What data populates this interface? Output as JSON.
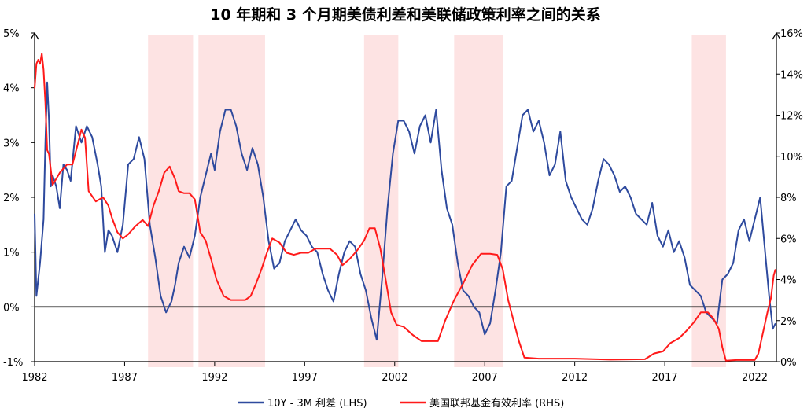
{
  "chart_data": {
    "type": "line",
    "title": "10 年期和 3 个月期美债利差和美联储政策利率之间的关系",
    "x_ticks": [
      "1982",
      "1987",
      "1992",
      "1997",
      "2002",
      "2007",
      "2012",
      "2017",
      "2022"
    ],
    "x_range": [
      1982,
      2023.2
    ],
    "y_left": {
      "ticks": [
        "-1%",
        "0%",
        "1%",
        "2%",
        "3%",
        "4%",
        "5%"
      ],
      "range": [
        -1,
        5
      ]
    },
    "y_right": {
      "ticks": [
        "0%",
        "2%",
        "4%",
        "6%",
        "8%",
        "10%",
        "12%",
        "14%",
        "16%"
      ],
      "range": [
        0,
        16
      ]
    },
    "recessions": [
      [
        1988.3,
        1990.8
      ],
      [
        1991.1,
        1994.8
      ],
      [
        2000.3,
        2002.2
      ],
      [
        2005.3,
        2008.0
      ],
      [
        2018.5,
        2020.4
      ]
    ],
    "series": [
      {
        "name": "10Y - 3M 利差 (LHS)",
        "axis": "left",
        "color": "#2e4a9e",
        "x": [
          1982.0,
          1982.1,
          1982.2,
          1982.3,
          1982.5,
          1982.6,
          1982.7,
          1982.8,
          1982.9,
          1983.0,
          1983.2,
          1983.4,
          1983.6,
          1983.8,
          1984.0,
          1984.3,
          1984.6,
          1984.9,
          1985.2,
          1985.5,
          1985.7,
          1985.9,
          1986.1,
          1986.3,
          1986.6,
          1986.9,
          1987.2,
          1987.5,
          1987.8,
          1988.1,
          1988.4,
          1988.7,
          1989.0,
          1989.3,
          1989.6,
          1989.8,
          1990.0,
          1990.3,
          1990.6,
          1990.9,
          1991.2,
          1991.5,
          1991.8,
          1992.0,
          1992.3,
          1992.6,
          1992.9,
          1993.2,
          1993.5,
          1993.8,
          1994.1,
          1994.4,
          1994.7,
          1995.0,
          1995.3,
          1995.6,
          1995.9,
          1996.2,
          1996.5,
          1996.8,
          1997.1,
          1997.4,
          1997.7,
          1998.0,
          1998.3,
          1998.6,
          1998.9,
          1999.2,
          1999.5,
          1999.8,
          2000.1,
          2000.4,
          2000.7,
          2001.0,
          2001.3,
          2001.6,
          2001.9,
          2002.2,
          2002.5,
          2002.8,
          2003.1,
          2003.4,
          2003.7,
          2004.0,
          2004.3,
          2004.6,
          2004.9,
          2005.2,
          2005.5,
          2005.8,
          2006.1,
          2006.4,
          2006.7,
          2007.0,
          2007.3,
          2007.6,
          2007.9,
          2008.2,
          2008.5,
          2008.8,
          2009.1,
          2009.4,
          2009.7,
          2010.0,
          2010.3,
          2010.6,
          2010.9,
          2011.2,
          2011.5,
          2011.8,
          2012.1,
          2012.4,
          2012.7,
          2013.0,
          2013.3,
          2013.6,
          2013.9,
          2014.2,
          2014.5,
          2014.8,
          2015.1,
          2015.4,
          2015.7,
          2016.0,
          2016.3,
          2016.6,
          2016.9,
          2017.2,
          2017.5,
          2017.8,
          2018.1,
          2018.4,
          2018.7,
          2019.0,
          2019.3,
          2019.6,
          2019.9,
          2020.2,
          2020.5,
          2020.8,
          2021.1,
          2021.4,
          2021.7,
          2022.0,
          2022.3,
          2022.6,
          2022.8,
          2023.0,
          2023.15
        ],
        "y": [
          1.7,
          0.2,
          0.5,
          0.8,
          1.6,
          3.0,
          4.1,
          3.4,
          2.2,
          2.4,
          2.2,
          1.8,
          2.6,
          2.5,
          2.3,
          3.3,
          3.0,
          3.3,
          3.1,
          2.6,
          2.2,
          1.0,
          1.4,
          1.3,
          1.0,
          1.5,
          2.6,
          2.7,
          3.1,
          2.7,
          1.5,
          0.9,
          0.2,
          -0.1,
          0.1,
          0.4,
          0.8,
          1.1,
          0.9,
          1.3,
          2.0,
          2.4,
          2.8,
          2.5,
          3.2,
          3.6,
          3.6,
          3.3,
          2.8,
          2.5,
          2.9,
          2.6,
          2.0,
          1.2,
          0.7,
          0.8,
          1.2,
          1.4,
          1.6,
          1.4,
          1.3,
          1.1,
          1.0,
          0.6,
          0.3,
          0.1,
          0.6,
          1.0,
          1.2,
          1.1,
          0.6,
          0.3,
          -0.2,
          -0.6,
          0.5,
          1.8,
          2.8,
          3.4,
          3.4,
          3.2,
          2.8,
          3.3,
          3.5,
          3.0,
          3.6,
          2.5,
          1.8,
          1.5,
          0.8,
          0.3,
          0.2,
          0.0,
          -0.1,
          -0.5,
          -0.3,
          0.3,
          1.0,
          2.2,
          2.3,
          2.9,
          3.5,
          3.6,
          3.2,
          3.4,
          3.0,
          2.4,
          2.6,
          3.2,
          2.3,
          2.0,
          1.8,
          1.6,
          1.5,
          1.8,
          2.3,
          2.7,
          2.6,
          2.4,
          2.1,
          2.2,
          2.0,
          1.7,
          1.6,
          1.5,
          1.9,
          1.3,
          1.1,
          1.4,
          1.0,
          1.2,
          0.9,
          0.4,
          0.3,
          0.2,
          -0.1,
          -0.2,
          -0.3,
          0.5,
          0.6,
          0.8,
          1.4,
          1.6,
          1.2,
          1.6,
          2.0,
          0.9,
          0.2,
          -0.4,
          -0.3
        ]
      },
      {
        "name": "美国联邦基金有效利率 (RHS)",
        "axis": "right",
        "color": "#ff1a1a",
        "x": [
          1982.0,
          1982.1,
          1982.2,
          1982.3,
          1982.4,
          1982.5,
          1982.6,
          1982.7,
          1982.8,
          1983.0,
          1983.4,
          1983.8,
          1984.1,
          1984.4,
          1984.6,
          1984.8,
          1985.0,
          1985.4,
          1985.8,
          1986.1,
          1986.3,
          1986.6,
          1986.9,
          1987.2,
          1987.6,
          1988.0,
          1988.3,
          1988.6,
          1988.9,
          1989.2,
          1989.5,
          1989.8,
          1990.0,
          1990.3,
          1990.6,
          1990.9,
          1991.2,
          1991.5,
          1991.8,
          1992.1,
          1992.5,
          1992.9,
          1993.3,
          1993.7,
          1994.0,
          1994.3,
          1994.6,
          1994.9,
          1995.2,
          1995.6,
          1996.0,
          1996.4,
          1996.8,
          1997.2,
          1997.6,
          1998.0,
          1998.4,
          1998.8,
          1999.1,
          1999.5,
          1999.9,
          2000.3,
          2000.6,
          2000.9,
          2001.2,
          2001.5,
          2001.8,
          2002.1,
          2002.5,
          2003.0,
          2003.5,
          2004.0,
          2004.4,
          2004.8,
          2005.3,
          2005.8,
          2006.3,
          2006.8,
          2007.3,
          2007.7,
          2008.0,
          2008.3,
          2008.6,
          2008.9,
          2009.2,
          2010.0,
          2012.0,
          2014.0,
          2015.9,
          2016.4,
          2016.9,
          2017.3,
          2017.8,
          2018.2,
          2018.6,
          2019.0,
          2019.4,
          2019.7,
          2020.0,
          2020.2,
          2020.4,
          2021.0,
          2022.0,
          2022.2,
          2022.5,
          2022.7,
          2022.9,
          2023.05,
          2023.15
        ],
        "y": [
          13.3,
          14.5,
          14.7,
          14.5,
          15.0,
          14.2,
          12.6,
          10.3,
          10.1,
          8.6,
          9.2,
          9.6,
          9.6,
          10.6,
          11.3,
          10.9,
          8.3,
          7.8,
          8.0,
          7.6,
          7.0,
          6.3,
          6.0,
          6.2,
          6.6,
          6.9,
          6.6,
          7.6,
          8.3,
          9.2,
          9.5,
          8.9,
          8.3,
          8.2,
          8.2,
          7.9,
          6.3,
          5.9,
          5.0,
          4.0,
          3.2,
          3.0,
          3.0,
          3.0,
          3.2,
          3.8,
          4.5,
          5.3,
          6.0,
          5.8,
          5.3,
          5.2,
          5.3,
          5.3,
          5.5,
          5.5,
          5.5,
          5.2,
          4.7,
          5.0,
          5.4,
          5.9,
          6.5,
          6.5,
          5.5,
          4.0,
          2.4,
          1.8,
          1.7,
          1.3,
          1.0,
          1.0,
          1.0,
          2.0,
          3.0,
          3.8,
          4.7,
          5.25,
          5.25,
          5.2,
          4.5,
          3.0,
          2.0,
          1.0,
          0.2,
          0.15,
          0.15,
          0.1,
          0.12,
          0.4,
          0.5,
          0.9,
          1.15,
          1.5,
          1.9,
          2.4,
          2.4,
          2.1,
          1.6,
          0.7,
          0.05,
          0.08,
          0.08,
          0.4,
          1.6,
          2.4,
          3.1,
          4.2,
          4.5
        ]
      }
    ]
  }
}
